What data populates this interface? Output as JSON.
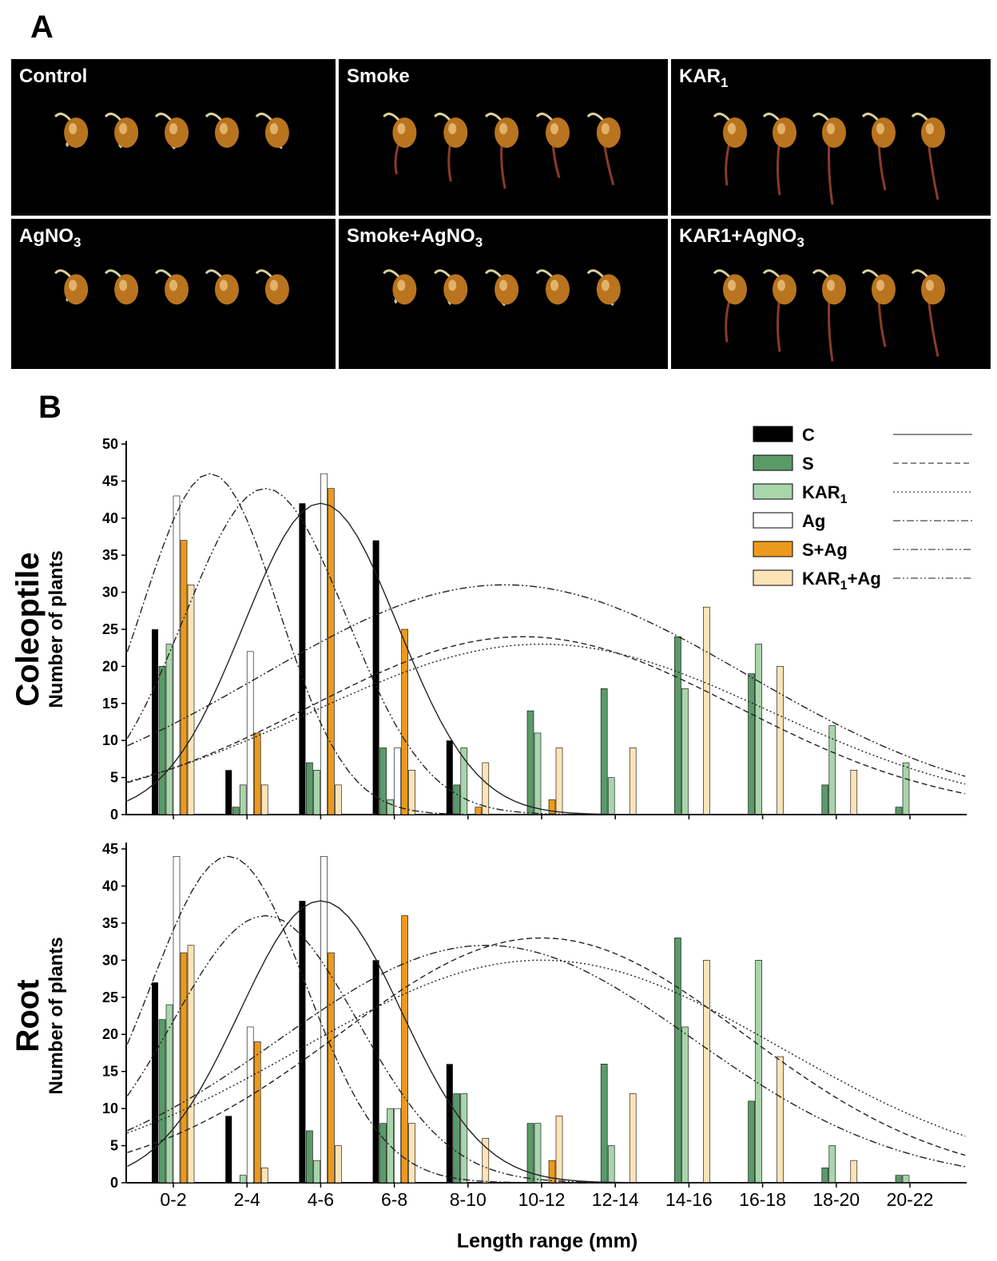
{
  "panel_a": {
    "letter": "A",
    "photos": [
      {
        "label": "Control",
        "sub": ""
      },
      {
        "label": "Smoke",
        "sub": ""
      },
      {
        "label": "KAR",
        "sub": "1"
      },
      {
        "label": "AgNO",
        "sub": "3"
      },
      {
        "label": "Smoke+AgNO",
        "sub": "3"
      },
      {
        "label": "KAR1+AgNO",
        "sub": "3"
      }
    ]
  },
  "panel_b": {
    "letter": "B"
  },
  "colors": {
    "C": "#000000",
    "S": "#5a9a68",
    "KAR1": "#a9d5ab",
    "Ag": "#ffffff",
    "S+Ag": "#eb9a1e",
    "KAR1+Ag": "#fde4b7"
  },
  "chart_data": [
    {
      "type": "bar",
      "panel": "Coleoptile",
      "ylabel_main": "Coleoptile",
      "ylabel_sub": "Number of plants",
      "xlabel": "Length range (mm)",
      "ylim": [
        0,
        50
      ],
      "yticks": [
        0,
        5,
        10,
        15,
        20,
        25,
        30,
        35,
        40,
        45,
        50
      ],
      "categories": [
        "0-2",
        "2-4",
        "4-6",
        "6-8",
        "8-10",
        "10-12",
        "12-14",
        "14-16",
        "16-18",
        "18-20",
        "20-22"
      ],
      "series": [
        {
          "name": "C",
          "values": [
            25,
            6,
            42,
            37,
            10,
            0,
            0,
            0,
            0,
            0,
            0
          ]
        },
        {
          "name": "S",
          "values": [
            20,
            1,
            7,
            9,
            4,
            14,
            17,
            24,
            19,
            4,
            1
          ]
        },
        {
          "name": "KAR1",
          "values": [
            23,
            4,
            6,
            2,
            9,
            11,
            5,
            17,
            23,
            12,
            7
          ]
        },
        {
          "name": "Ag",
          "values": [
            43,
            22,
            46,
            9,
            0,
            0,
            0,
            0,
            0,
            0,
            0
          ]
        },
        {
          "name": "S+Ag",
          "values": [
            37,
            11,
            44,
            25,
            1,
            2,
            0,
            0,
            0,
            0,
            0
          ]
        },
        {
          "name": "KAR1+Ag",
          "values": [
            31,
            4,
            4,
            6,
            7,
            9,
            9,
            28,
            20,
            6,
            0
          ]
        }
      ],
      "fits": [
        {
          "series": "C",
          "style": "solid",
          "mean": 5,
          "sd": 2.1,
          "peak": 42
        },
        {
          "series": "S",
          "style": "dashed",
          "mean": 10.5,
          "sd": 5.8,
          "peak": 24
        },
        {
          "series": "KAR1",
          "style": "dotted",
          "mean": 11,
          "sd": 6.2,
          "peak": 23
        },
        {
          "series": "Ag",
          "style": "dashdot",
          "mean": 2,
          "sd": 1.85,
          "peak": 46
        },
        {
          "series": "S+Ag",
          "style": "dashdotdot",
          "mean": 3.5,
          "sd": 2.2,
          "peak": 44
        },
        {
          "series": "KAR1+Ag",
          "style": "dashdotdot",
          "mean": 10,
          "sd": 6.6,
          "peak": 31
        }
      ]
    },
    {
      "type": "bar",
      "panel": "Root",
      "ylabel_main": "Root",
      "ylabel_sub": "Number of plants",
      "xlabel": "Length range (mm)",
      "ylim": [
        0,
        45
      ],
      "yticks": [
        0,
        5,
        10,
        15,
        20,
        25,
        30,
        35,
        40,
        45
      ],
      "categories": [
        "0-2",
        "2-4",
        "4-6",
        "6-8",
        "8-10",
        "10-12",
        "12-14",
        "14-16",
        "16-18",
        "18-20",
        "20-22"
      ],
      "series": [
        {
          "name": "C",
          "values": [
            27,
            9,
            38,
            30,
            16,
            0,
            0,
            0,
            0,
            0,
            0
          ]
        },
        {
          "name": "S",
          "values": [
            22,
            0,
            7,
            8,
            12,
            8,
            16,
            33,
            11,
            2,
            1
          ]
        },
        {
          "name": "KAR1",
          "values": [
            24,
            1,
            3,
            10,
            12,
            8,
            5,
            21,
            30,
            5,
            1
          ]
        },
        {
          "name": "Ag",
          "values": [
            44,
            21,
            44,
            10,
            0,
            0,
            0,
            0,
            0,
            0,
            0
          ]
        },
        {
          "name": "S+Ag",
          "values": [
            31,
            19,
            31,
            36,
            0,
            3,
            0,
            0,
            0,
            0,
            0
          ]
        },
        {
          "name": "KAR1+Ag",
          "values": [
            32,
            2,
            5,
            8,
            6,
            9,
            12,
            30,
            17,
            3,
            0
          ]
        }
      ],
      "fits": [
        {
          "series": "C",
          "style": "solid",
          "mean": 5,
          "sd": 2.2,
          "peak": 38
        },
        {
          "series": "S",
          "style": "dashed",
          "mean": 11,
          "sd": 5.5,
          "peak": 33
        },
        {
          "series": "KAR1",
          "style": "dotted",
          "mean": 11,
          "sd": 6.5,
          "peak": 30
        },
        {
          "series": "Ag",
          "style": "dashdot",
          "mean": 2.5,
          "sd": 2.1,
          "peak": 44
        },
        {
          "series": "S+Ag",
          "style": "dashdotdot",
          "mean": 3.5,
          "sd": 2.5,
          "peak": 36
        },
        {
          "series": "KAR1+Ag",
          "style": "dashdotdot",
          "mean": 9.5,
          "sd": 5.6,
          "peak": 32
        }
      ]
    }
  ],
  "legend": {
    "entries": [
      {
        "label": "C",
        "sub": ""
      },
      {
        "label": "S",
        "sub": ""
      },
      {
        "label": "KAR",
        "sub": "1"
      },
      {
        "label": "Ag",
        "sub": ""
      },
      {
        "label": "S+Ag",
        "sub": ""
      },
      {
        "label": "KAR",
        "sub": "1",
        "after": "+Ag"
      }
    ]
  }
}
